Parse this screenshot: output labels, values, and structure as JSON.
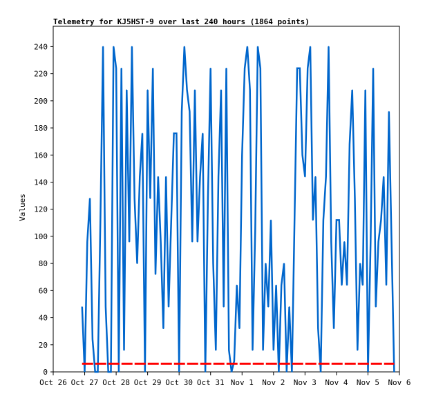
{
  "chart_data": {
    "type": "line",
    "title": "Telemetry for KJ5HST-9 over last 240 hours (1864 points)",
    "xlabel": "",
    "ylabel": "Values",
    "xlim": [
      "Oct 26",
      "Nov 6"
    ],
    "ylim": [
      0,
      255
    ],
    "x_ticks": [
      "Oct 26",
      "Oct 27",
      "Oct 28",
      "Oct 29",
      "Oct 30",
      "Oct 31",
      "Nov 1",
      "Nov 2",
      "Nov 3",
      "Nov 4",
      "Nov 5",
      "Nov 6"
    ],
    "y_ticks": [
      0,
      20,
      40,
      60,
      80,
      100,
      120,
      140,
      160,
      180,
      200,
      220,
      240
    ],
    "grid": false,
    "legend": "none",
    "series": [
      {
        "color": "#0066cc",
        "x_start": "Oct 26 22:00",
        "interval_hours": 2,
        "values": [
          48,
          0,
          96,
          128,
          24,
          0,
          0,
          112,
          240,
          48,
          0,
          0,
          240,
          224,
          0,
          224,
          16,
          208,
          96,
          240,
          128,
          80,
          144,
          176,
          0,
          208,
          128,
          224,
          72,
          144,
          96,
          32,
          144,
          48,
          112,
          176,
          176,
          0,
          192,
          240,
          208,
          192,
          96,
          208,
          96,
          144,
          176,
          0,
          128,
          224,
          80,
          16,
          144,
          208,
          48,
          224,
          16,
          0,
          8,
          64,
          32,
          160,
          224,
          240,
          208,
          16,
          104,
          240,
          224,
          16,
          80,
          48,
          112,
          16,
          64,
          0,
          64,
          80,
          0,
          48,
          0,
          112,
          224,
          224,
          160,
          144,
          224,
          240,
          112,
          144,
          32,
          0,
          112,
          144,
          240,
          96,
          32,
          112,
          112,
          64,
          96,
          64,
          168,
          208,
          128,
          16,
          80,
          64,
          208,
          0,
          96,
          224,
          48,
          96,
          112,
          144,
          64,
          192,
          96,
          0
        ]
      },
      {
        "color": "#ff0000",
        "style": "dashed",
        "x_start": "Oct 26 22:00",
        "x_end": "Nov 5 20:00",
        "constant_value": 6
      }
    ]
  }
}
